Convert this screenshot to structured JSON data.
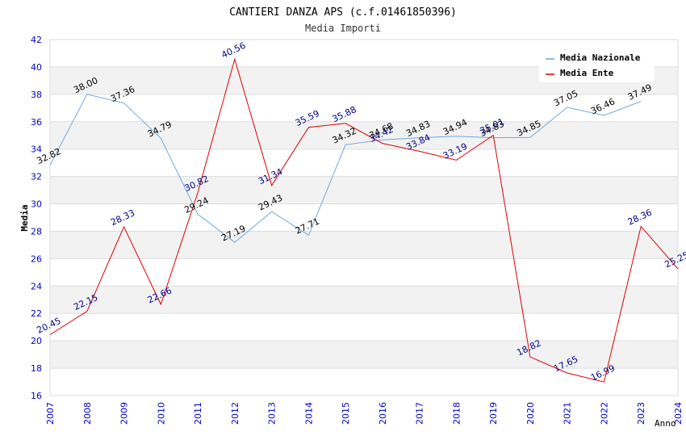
{
  "chart_data": {
    "type": "line",
    "title": "CANTIERI DANZA APS (c.f.01461850396)",
    "subtitle": "Media Importi",
    "xlabel": "Anno",
    "ylabel": "Media",
    "x": [
      "2007",
      "2008",
      "2009",
      "2010",
      "2011",
      "2012",
      "2013",
      "2014",
      "2015",
      "2016",
      "2017",
      "2018",
      "2019",
      "2020",
      "2021",
      "2022",
      "2023",
      "2024"
    ],
    "ylim": [
      16,
      42
    ],
    "yticks": [
      16,
      18,
      20,
      22,
      24,
      26,
      28,
      30,
      32,
      34,
      36,
      38,
      40,
      42
    ],
    "legend_position": "top-right",
    "series": [
      {
        "name": "Media Nazionale",
        "color": "#6fa8dc",
        "label_color": "#000000",
        "values": [
          32.82,
          38.0,
          37.36,
          34.79,
          29.24,
          27.19,
          29.43,
          27.71,
          34.32,
          34.68,
          34.83,
          34.94,
          34.83,
          34.85,
          37.05,
          36.46,
          37.49,
          null
        ],
        "labels": [
          "32.82",
          "38.00",
          "37.36",
          "34.79",
          "29.24",
          "27.19",
          "29.43",
          "27.71",
          "34.32",
          "34.68",
          "34.83",
          "34.94",
          "34.83",
          "34.85",
          "37.05",
          "36.46",
          "37.49",
          null
        ]
      },
      {
        "name": "Media Ente",
        "color": "#dd0000",
        "label_color": "#00008b",
        "values": [
          20.45,
          22.15,
          28.33,
          22.66,
          30.82,
          40.56,
          31.34,
          35.59,
          35.88,
          34.42,
          33.84,
          33.19,
          35.01,
          18.82,
          17.65,
          16.99,
          28.36,
          25.25
        ],
        "labels": [
          "20.45",
          "22.15",
          "28.33",
          "22.66",
          "30.82",
          "40.56",
          "31.34",
          "35.59",
          "35.88",
          "34.42",
          "33.84",
          "33.19",
          "35.01",
          "18.82",
          "17.65",
          "16.99",
          "28.36",
          "25.25"
        ]
      }
    ],
    "colors": {
      "grid_band": "#f2f2f2",
      "grid_line": "#dddddd",
      "axis_text": "#0000cc",
      "title_text": "#000000",
      "subtitle_text": "#333333"
    }
  }
}
